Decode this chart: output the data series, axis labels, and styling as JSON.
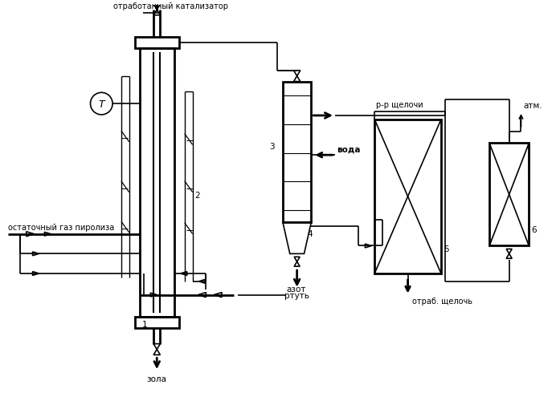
{
  "bg_color": "#ffffff",
  "line_color": "#000000",
  "lw": 1.2,
  "lw2": 2.0,
  "labels": {
    "catalyst_in": "отработанный катализатор",
    "gas_in": "остаточный газ пиролиза",
    "nitrogen": "азот",
    "ash_out": "зола",
    "water": "вода",
    "mercury": "ртуть",
    "alkali_sol": "р-р щелочи",
    "spent_alkali": "отраб. щелочь",
    "atm": "атм.",
    "num1": "1",
    "num2": "2",
    "num3": "3",
    "num4": "4",
    "num5": "5",
    "num6": "6"
  },
  "figsize": [
    6.92,
    5.0
  ],
  "dpi": 100
}
